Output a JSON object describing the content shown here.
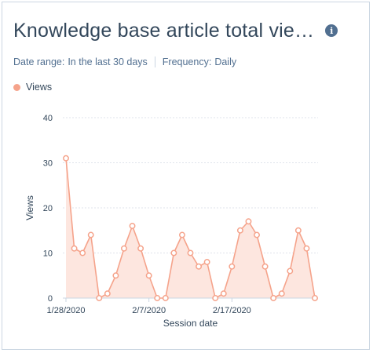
{
  "header": {
    "title": "Knowledge base article total vie…",
    "info_icon": "info-icon"
  },
  "filters": {
    "date_range_label": "Date range:",
    "date_range_value": "In the last 30 days",
    "frequency_label": "Frequency:",
    "frequency_value": "Daily"
  },
  "colors": {
    "series": "#f5a38b",
    "fill": "#fde6df",
    "grid": "#dfe3eb"
  },
  "chart_data": {
    "type": "area",
    "xlabel": "Session date",
    "ylabel": "Views",
    "ylim": [
      0,
      40
    ],
    "yticks": [
      0,
      10,
      20,
      30,
      40
    ],
    "grid": true,
    "legend": "top-left",
    "x": [
      "1/28/2020",
      "1/29/2020",
      "1/30/2020",
      "1/31/2020",
      "2/1/2020",
      "2/2/2020",
      "2/3/2020",
      "2/4/2020",
      "2/5/2020",
      "2/6/2020",
      "2/7/2020",
      "2/8/2020",
      "2/9/2020",
      "2/10/2020",
      "2/11/2020",
      "2/12/2020",
      "2/13/2020",
      "2/14/2020",
      "2/15/2020",
      "2/16/2020",
      "2/17/2020",
      "2/18/2020",
      "2/19/2020",
      "2/20/2020",
      "2/21/2020",
      "2/22/2020",
      "2/23/2020",
      "2/24/2020",
      "2/25/2020",
      "2/26/2020",
      "2/27/2020"
    ],
    "xtick_labels": [
      {
        "index": 0,
        "label": "1/28/2020"
      },
      {
        "index": 10,
        "label": "2/7/2020"
      },
      {
        "index": 20,
        "label": "2/17/2020"
      }
    ],
    "series": [
      {
        "name": "Views",
        "values": [
          31,
          11,
          10,
          14,
          0,
          1,
          5,
          11,
          16,
          11,
          5,
          0,
          0,
          10,
          14,
          10,
          7,
          8,
          0,
          1,
          7,
          15,
          17,
          14,
          7,
          0,
          1,
          6,
          15,
          11,
          0
        ]
      }
    ]
  }
}
